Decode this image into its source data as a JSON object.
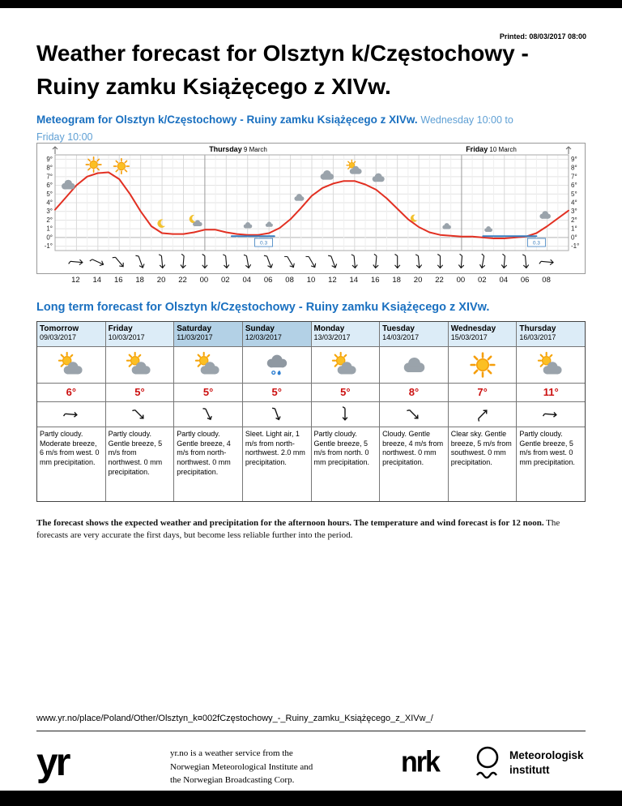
{
  "page": {
    "printed": "Printed: 08/03/2017 08:00",
    "title_line1": "Weather forecast for Olsztyn k/Częstochowy -",
    "title_line2": "Ruiny zamku Książęcego z XIVw."
  },
  "meteogram": {
    "heading": "Meteogram for Olsztyn k/Częstochowy - Ruiny zamku Książęcego z XIVw.",
    "range_line1": "Wednesday 10:00 to",
    "range_line2": "Friday 10:00"
  },
  "chart_data": {
    "type": "line",
    "title": "Meteogram Wednesday 10:00 to Friday 10:00",
    "ylim": [
      -1.5,
      9.5
    ],
    "y_tick_labels": [
      "9°",
      "8°",
      "7°",
      "6°",
      "5°",
      "4°",
      "3°",
      "2°",
      "1°",
      "0°",
      "-1°"
    ],
    "x_tick_hours": [
      2,
      4,
      6,
      8,
      10,
      12,
      14,
      16,
      18,
      20,
      22,
      24,
      26,
      28,
      30,
      32,
      34,
      36,
      38,
      40,
      42,
      44,
      46
    ],
    "x_tick_labels": [
      "12",
      "14",
      "16",
      "18",
      "20",
      "22",
      "00",
      "02",
      "04",
      "06",
      "08",
      "10",
      "12",
      "14",
      "16",
      "18",
      "20",
      "22",
      "00",
      "02",
      "04",
      "06",
      "08"
    ],
    "day_labels": [
      {
        "bold": "Thursday",
        "text": " 9 March",
        "hour": 14.4
      },
      {
        "bold": "Friday",
        "text": " 10 March",
        "hour": 38.4
      }
    ],
    "series": [
      {
        "name": "Temperature (°C)",
        "start": "Wednesday 10:00",
        "step_hours": 1,
        "color": "#e23022",
        "values": [
          3.2,
          4.6,
          6,
          7,
          7.4,
          7.5,
          6.7,
          5,
          3,
          1.3,
          0.5,
          0.4,
          0.4,
          0.6,
          0.9,
          0.9,
          0.6,
          0.4,
          0.3,
          0.3,
          0.5,
          1.1,
          2.1,
          3.4,
          4.8,
          5.7,
          6.2,
          6.5,
          6.5,
          6.1,
          5.5,
          4.5,
          3.3,
          2.1,
          1.2,
          0.6,
          0.3,
          0.2,
          0.1,
          0.1,
          0,
          -0.1,
          -0.1,
          0,
          0.1,
          0.5,
          1.3,
          2.2,
          3.1
        ]
      }
    ],
    "freezing_color": "#3a7ebf",
    "freezing_segments": [
      {
        "from_hour": 16.5,
        "to_hour": 20.5,
        "value": 0.15
      },
      {
        "from_hour": 40,
        "to_hour": 45,
        "value": 0.15
      }
    ],
    "precipitation_markers": [
      {
        "hour": 19.5,
        "label": "0.3"
      },
      {
        "hour": 45,
        "label": "0.3"
      }
    ],
    "weather_icons": [
      {
        "hour": 1.2,
        "type": "cloud",
        "size": 22
      },
      {
        "hour": 3.6,
        "type": "sun",
        "size": 22
      },
      {
        "hour": 6.2,
        "type": "sun",
        "size": 22
      },
      {
        "hour": 10,
        "type": "moon",
        "size": 14
      },
      {
        "hour": 13.2,
        "type": "partly-cloud-moon",
        "size": 18
      },
      {
        "hour": 18,
        "type": "cloud",
        "size": 14
      },
      {
        "hour": 20,
        "type": "cloud",
        "size": 12
      },
      {
        "hour": 22.8,
        "type": "cloud",
        "size": 16
      },
      {
        "hour": 25.4,
        "type": "cloud",
        "size": 22
      },
      {
        "hour": 28,
        "type": "partly-cloudy",
        "size": 22
      },
      {
        "hour": 30.2,
        "type": "cloud",
        "size": 20
      },
      {
        "hour": 33.6,
        "type": "moon",
        "size": 12
      },
      {
        "hour": 36.6,
        "type": "cloud",
        "size": 14
      },
      {
        "hour": 40.5,
        "type": "cloud",
        "size": 13
      },
      {
        "hour": 45.8,
        "type": "cloud",
        "size": 18
      }
    ],
    "wind_arrows_deg": [
      95,
      115,
      140,
      160,
      175,
      185,
      180,
      175,
      170,
      160,
      150,
      150,
      160,
      175,
      185,
      180,
      175,
      180,
      185,
      190,
      185,
      175,
      95
    ]
  },
  "longterm": {
    "heading": "Long term forecast for Olsztyn k/Częstochowy - Ruiny zamku Książęcego z XIVw.",
    "columns": [
      {
        "day": "Tomorrow",
        "date": "09/03/2017",
        "weekend": false,
        "icon": "partly-cloudy",
        "temp": "6°",
        "wind_deg": 95,
        "desc": "Partly cloudy. Moderate breeze, 6 m/s from west. 0 mm precipitation."
      },
      {
        "day": "Friday",
        "date": "10/03/2017",
        "weekend": false,
        "icon": "partly-cloudy",
        "temp": "5°",
        "wind_deg": 135,
        "desc": "Partly cloudy. Gentle breeze, 5 m/s from northwest. 0 mm precipitation."
      },
      {
        "day": "Saturday",
        "date": "11/03/2017",
        "weekend": true,
        "icon": "partly-cloudy",
        "temp": "5°",
        "wind_deg": 155,
        "desc": "Partly cloudy. Gentle breeze, 4 m/s from north-northwest. 0 mm precipitation."
      },
      {
        "day": "Sunday",
        "date": "12/03/2017",
        "weekend": true,
        "icon": "sleet",
        "temp": "5°",
        "wind_deg": 160,
        "desc": "Sleet. Light air, 1 m/s from north-northwest. 2.0 mm precipitation."
      },
      {
        "day": "Monday",
        "date": "13/03/2017",
        "weekend": false,
        "icon": "partly-cloudy",
        "temp": "5°",
        "wind_deg": 180,
        "desc": "Partly cloudy. Gentle breeze, 5 m/s from north. 0 mm precipitation."
      },
      {
        "day": "Tuesday",
        "date": "14/03/2017",
        "weekend": false,
        "icon": "cloudy",
        "temp": "8°",
        "wind_deg": 135,
        "desc": "Cloudy. Gentle breeze, 4 m/s from northwest. 0 mm precipitation."
      },
      {
        "day": "Wednesday",
        "date": "15/03/2017",
        "weekend": false,
        "icon": "clear-sky",
        "temp": "7°",
        "wind_deg": 45,
        "desc": "Clear sky. Gentle breeze, 5 m/s from southwest. 0 mm precipitation."
      },
      {
        "day": "Thursday",
        "date": "16/03/2017",
        "weekend": false,
        "icon": "partly-cloudy",
        "temp": "11°",
        "wind_deg": 95,
        "desc": "Partly cloudy. Gentle breeze, 5 m/s from west. 0 mm precipitation."
      }
    ]
  },
  "footnote": {
    "bold": "The forecast shows the expected weather and precipitation for the afternoon hours. The temperature and wind forecast is for 12 noon.",
    "normal": " The forecasts are very accurate the first days, but become less reliable further into the period."
  },
  "url": "www.yr.no/place/Poland/Other/Olsztyn_k¤002fCzęstochowy_-_Ruiny_zamku_Książęcego_z_XIVw_/",
  "footer": {
    "logos": {
      "yr": "yr",
      "nrk": "nrk",
      "met_line1": "Meteorologisk",
      "met_line2": "institutt"
    },
    "service_lines": [
      "yr.no is a weather service from the",
      "Norwegian Meteorological Institute and",
      "the Norwegian Broadcasting Corp."
    ]
  },
  "colors": {
    "heading_blue": "#1a70c0",
    "range_blue": "#5e9fd4",
    "temperature_red": "#cc1111",
    "temp_line_red": "#e23022",
    "temp_line_blue": "#3a7ebf",
    "header_bg": "#dcecf7",
    "weekend_header_bg": "#b3d1e6"
  }
}
